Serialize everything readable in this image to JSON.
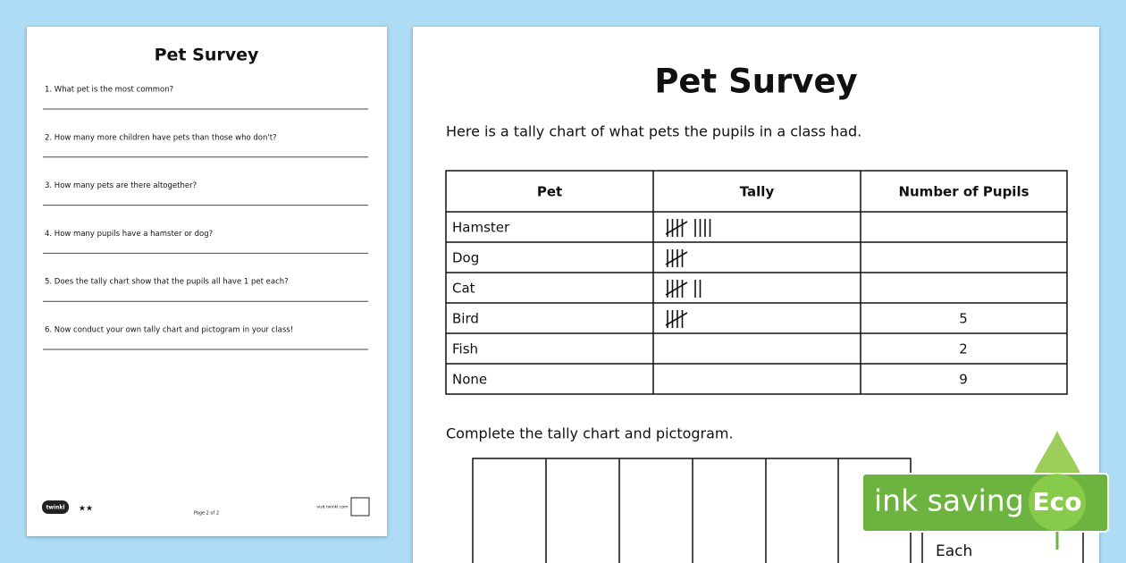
{
  "left_page": {
    "title": "Pet Survey",
    "questions": [
      "1. What pet is the most common?",
      "2. How many more children have pets than those who don't?",
      "3. How many pets are there altogether?",
      "4. How many pupils have a hamster or dog?",
      "5. Does the tally chart show that the pupils all have 1 pet each?",
      "6. Now conduct your own tally chart and pictogram in your class!"
    ],
    "footer": {
      "logo": "twinkl",
      "stars": "★★",
      "page": "Page 2 of 2",
      "site": "visit twinkl.com"
    }
  },
  "right_page": {
    "title": "Pet Survey",
    "intro": "Here is a tally chart of what pets the pupils in a class had.",
    "table": {
      "headers": [
        "Pet",
        "Tally",
        "Number of Pupils"
      ],
      "rows": [
        {
          "pet": "Hamster",
          "tally": 9
        },
        {
          "pet": "Dog",
          "tally": 5
        },
        {
          "pet": "Cat",
          "tally": 7
        },
        {
          "pet": "Bird",
          "tally": 5,
          "pupils": 5
        },
        {
          "pet": "Fish",
          "pupils": 2
        },
        {
          "pet": "None",
          "pupils": 9
        }
      ]
    },
    "instruction": "Complete the tally chart and pictogram.",
    "key_label": "Each"
  },
  "badge": {
    "text": "ink saving",
    "label": "Eco"
  }
}
